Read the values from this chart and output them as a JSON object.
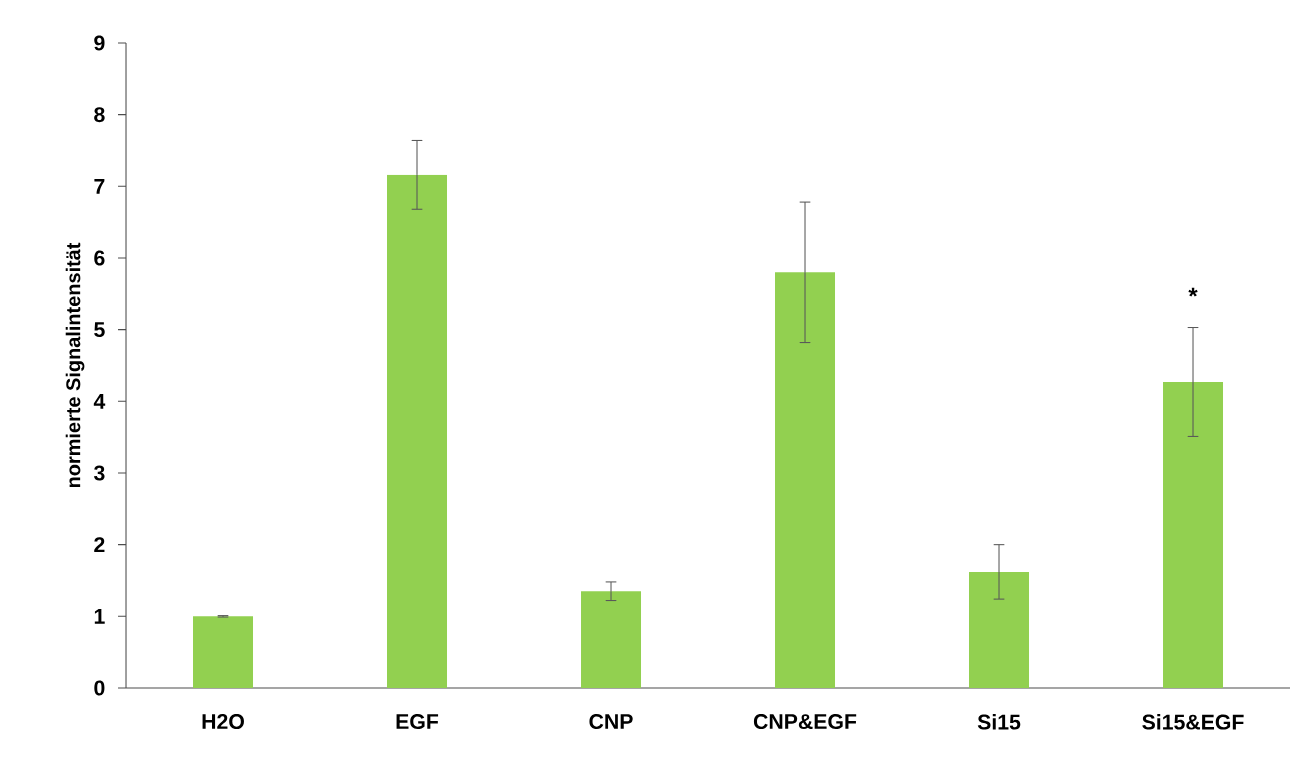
{
  "chart_data": {
    "type": "bar",
    "ylabel": "normierte Signalintensität",
    "categories": [
      "H2O",
      "EGF",
      "CNP",
      "CNP&EGF",
      "Si15",
      "Si15&EGF"
    ],
    "values": [
      1.0,
      7.16,
      1.35,
      5.8,
      1.62,
      4.27
    ],
    "errors": [
      0.01,
      0.48,
      0.13,
      0.98,
      0.38,
      0.76
    ],
    "color": "#92d050",
    "ylim": [
      0,
      9
    ],
    "yticks": [
      0,
      1,
      2,
      3,
      4,
      5,
      6,
      7,
      8,
      9
    ],
    "annotations": [
      "*"
    ]
  }
}
